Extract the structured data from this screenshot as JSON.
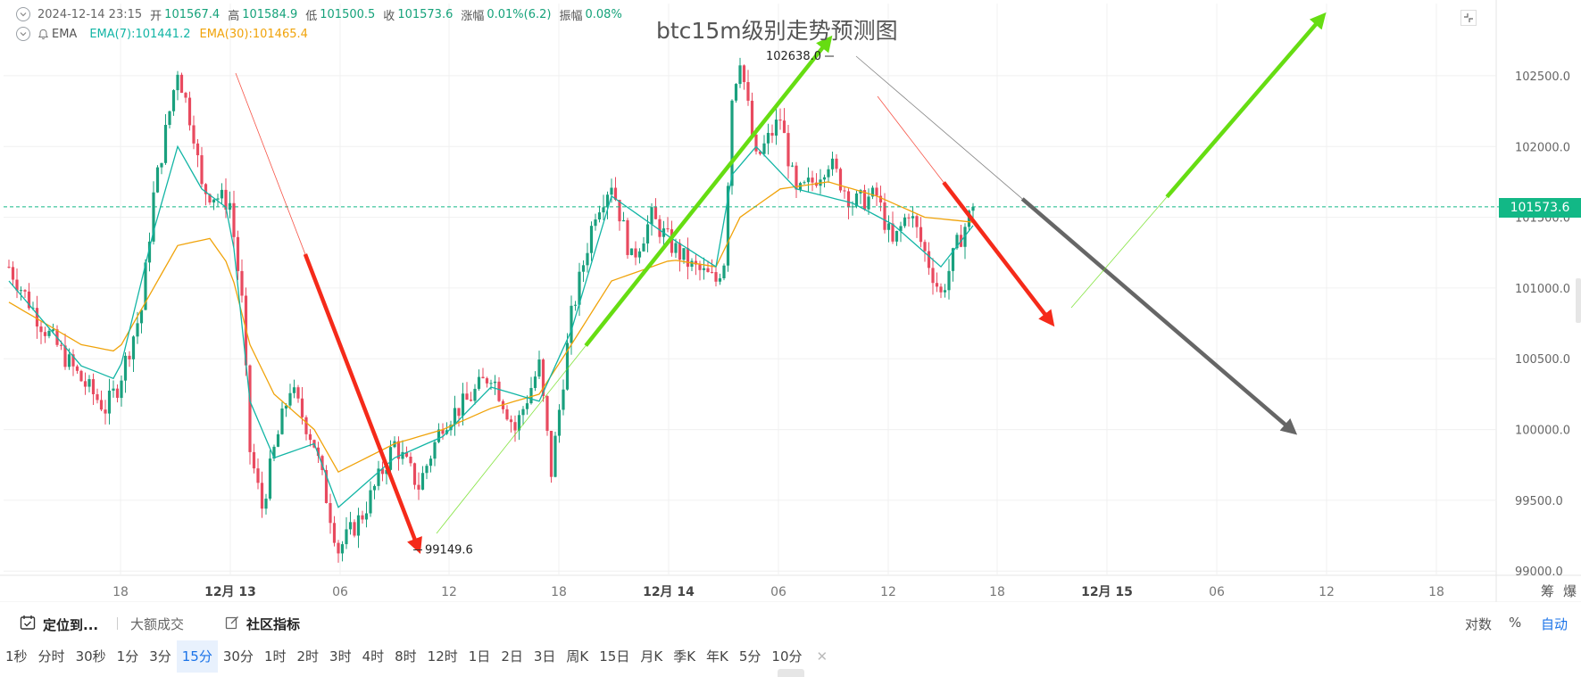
{
  "header": {
    "date": "2024-12-14 23:15",
    "open_label": "开",
    "open_value": "101567.4",
    "high_label": "高",
    "high_value": "101584.9",
    "low_label": "低",
    "low_value": "101500.5",
    "close_label": "收",
    "close_value": "101573.6",
    "change_label": "涨幅",
    "change_value": "0.01%(6.2)",
    "amplitude_label": "振幅",
    "amplitude_value": "0.08%",
    "indicator_name": "EMA",
    "ema7_label": "EMA(7):101441.2",
    "ema30_label": "EMA(30):101465.4"
  },
  "title": "btc15m级别走势预测图",
  "current_price": "101573.6",
  "annotations": {
    "high_point": "102638.0",
    "low_point": "99149.6"
  },
  "colors": {
    "up": "#1aa07e",
    "down": "#e84a5f",
    "ema7": "#12b5a5",
    "ema30": "#f0a30a",
    "price_line": "#12b886",
    "arrow_red": "#f52a1a",
    "arrow_green": "#66dd12",
    "arrow_gray": "#666666",
    "accent": "#1a73e8"
  },
  "chart_data": {
    "type": "candlestick",
    "symbol": "BTC",
    "interval": "15分",
    "y_ticks": [
      "102500.0",
      "102000.0",
      "101500.0",
      "101000.0",
      "100500.0",
      "100000.0",
      "99500.0",
      "99000.0"
    ],
    "x_ticks": [
      "18",
      "12月 13",
      "06",
      "12",
      "18",
      "12月 14",
      "06",
      "12",
      "18",
      "12月 15",
      "06",
      "12",
      "18"
    ],
    "x_ticks_bold": [
      false,
      true,
      false,
      false,
      false,
      true,
      false,
      false,
      false,
      true,
      false,
      false,
      false
    ],
    "ylim": [
      98970,
      103010
    ],
    "current_price": 101573.6,
    "grid": true,
    "axis_extra_labels": [
      "筹",
      "爆"
    ],
    "price_path": [
      [
        0,
        101150
      ],
      [
        8,
        100750
      ],
      [
        18,
        100350
      ],
      [
        24,
        100150
      ],
      [
        27,
        100300
      ],
      [
        33,
        100850
      ],
      [
        36,
        101650
      ],
      [
        42,
        102550
      ],
      [
        46,
        102100
      ],
      [
        48,
        101700
      ],
      [
        55,
        101600
      ],
      [
        58,
        100900
      ],
      [
        60,
        99850
      ],
      [
        63,
        99450
      ],
      [
        66,
        99850
      ],
      [
        70,
        100300
      ],
      [
        76,
        99900
      ],
      [
        82,
        99149.6
      ],
      [
        88,
        99400
      ],
      [
        96,
        99900
      ],
      [
        102,
        99600
      ],
      [
        108,
        100050
      ],
      [
        114,
        100200
      ],
      [
        120,
        100400
      ],
      [
        126,
        100000
      ],
      [
        132,
        100450
      ],
      [
        135,
        99700
      ],
      [
        140,
        100800
      ],
      [
        146,
        101550
      ],
      [
        150,
        101750
      ],
      [
        155,
        101200
      ],
      [
        160,
        101500
      ],
      [
        165,
        101300
      ],
      [
        170,
        101150
      ],
      [
        176,
        101050
      ],
      [
        178,
        101200
      ],
      [
        180,
        102350
      ],
      [
        182,
        102638
      ],
      [
        186,
        101900
      ],
      [
        192,
        102200
      ],
      [
        196,
        101650
      ],
      [
        200,
        101750
      ],
      [
        204,
        101900
      ],
      [
        210,
        101600
      ],
      [
        216,
        101650
      ],
      [
        220,
        101300
      ],
      [
        224,
        101550
      ],
      [
        228,
        101250
      ],
      [
        232,
        100950
      ],
      [
        236,
        101300
      ],
      [
        240,
        101573.6
      ]
    ],
    "ema7": [
      [
        0,
        101050
      ],
      [
        18,
        100450
      ],
      [
        27,
        100350
      ],
      [
        36,
        101400
      ],
      [
        42,
        102000
      ],
      [
        48,
        101700
      ],
      [
        55,
        101550
      ],
      [
        60,
        100200
      ],
      [
        66,
        99800
      ],
      [
        76,
        99900
      ],
      [
        82,
        99450
      ],
      [
        96,
        99800
      ],
      [
        108,
        99950
      ],
      [
        120,
        100300
      ],
      [
        132,
        100200
      ],
      [
        140,
        100700
      ],
      [
        150,
        101650
      ],
      [
        165,
        101350
      ],
      [
        176,
        101150
      ],
      [
        180,
        101800
      ],
      [
        186,
        102000
      ],
      [
        196,
        101700
      ],
      [
        210,
        101600
      ],
      [
        220,
        101450
      ],
      [
        232,
        101150
      ],
      [
        240,
        101441.2
      ]
    ],
    "ema30": [
      [
        0,
        100900
      ],
      [
        18,
        100600
      ],
      [
        27,
        100550
      ],
      [
        36,
        101000
      ],
      [
        42,
        101300
      ],
      [
        50,
        101350
      ],
      [
        55,
        101150
      ],
      [
        60,
        100600
      ],
      [
        66,
        100250
      ],
      [
        76,
        100000
      ],
      [
        82,
        99700
      ],
      [
        96,
        99900
      ],
      [
        108,
        100000
      ],
      [
        120,
        100150
      ],
      [
        132,
        100250
      ],
      [
        140,
        100600
      ],
      [
        150,
        101050
      ],
      [
        165,
        101200
      ],
      [
        176,
        101150
      ],
      [
        182,
        101500
      ],
      [
        192,
        101700
      ],
      [
        204,
        101750
      ],
      [
        216,
        101650
      ],
      [
        228,
        101500
      ],
      [
        240,
        101465.4
      ]
    ]
  },
  "toolbar": {
    "locate_label": "定位到...",
    "big_deal_label": "大额成交",
    "community_label": "社区指标",
    "log_label": "对数",
    "percent_label": "%",
    "auto_label": "自动"
  },
  "intervals": {
    "items": [
      "1秒",
      "分时",
      "30秒",
      "1分",
      "3分",
      "15分",
      "30分",
      "1时",
      "2时",
      "3时",
      "4时",
      "8时",
      "12时",
      "1日",
      "2日",
      "3日",
      "周K",
      "15日",
      "月K",
      "季K",
      "年K",
      "5分",
      "10分"
    ],
    "active": "15分",
    "close_symbol": "✕"
  }
}
